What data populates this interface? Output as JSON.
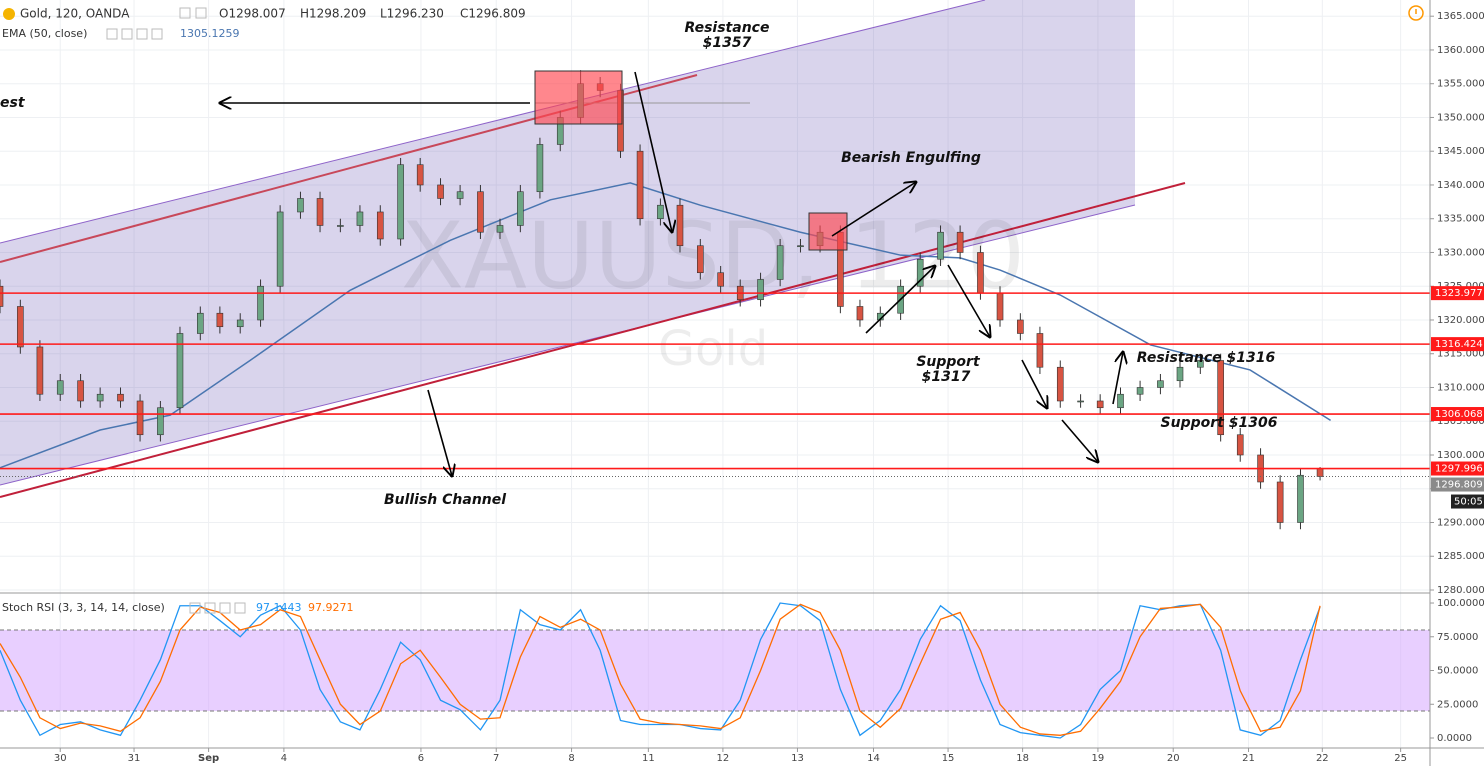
{
  "header": {
    "symbol": "Gold, 120, OANDA",
    "open": "O1298.007",
    "high": "H1298.209",
    "low": "L1296.230",
    "close": "C1296.809",
    "ema_label": "EMA (50, close)"
  },
  "annotations": {
    "resistance_1357": [
      "Resistance",
      "$1357"
    ],
    "bearish": "Bearish Engulfing",
    "channel": "Bullish Channel",
    "support_1317": [
      "Support",
      "$1317"
    ],
    "resistance_1316": "Resistance $1316",
    "support_1306": "Support $1306",
    "left_cut": "est"
  },
  "chart_data": [
    {
      "type": "candlestick",
      "watermark": "XAUUSD, 120",
      "watermark_sub": "Gold",
      "x": [
        -0.8,
        -0.53,
        -0.27,
        0,
        0.27,
        0.53,
        0.8,
        1.06,
        1.33,
        1.59,
        1.86,
        2.12,
        2.39,
        2.66,
        2.92,
        3.19,
        3.45,
        3.72,
        3.98,
        4.25,
        4.52,
        4.78,
        5.05,
        5.31,
        5.58,
        5.84,
        6.11,
        6.37,
        6.64,
        6.91,
        7.17,
        7.44,
        7.7,
        7.97,
        8.23,
        8.5,
        8.77,
        9.03,
        9.3,
        9.56,
        9.83,
        10.09,
        10.36,
        10.62,
        10.89,
        11.16,
        11.42,
        11.69,
        11.95,
        12.22,
        12.48,
        12.75,
        13.01,
        13.28,
        13.55,
        13.81,
        14.08,
        14.34,
        14.61,
        14.87,
        15.14,
        15.41,
        15.67,
        15.94,
        16.2,
        16.47,
        16.73
      ],
      "open": [
        1325,
        1322,
        1316,
        1309,
        1311,
        1308,
        1309,
        1308,
        1303,
        1307,
        1318,
        1321,
        1319,
        1320,
        1325,
        1336,
        1338,
        1334,
        1334,
        1336,
        1332,
        1343,
        1340,
        1338,
        1339,
        1333,
        1334,
        1339,
        1346,
        1350,
        1355,
        1354,
        1345,
        1335,
        1337,
        1331,
        1327,
        1325,
        1323,
        1326,
        1331,
        1331,
        1333,
        1322,
        1320,
        1321,
        1325,
        1329,
        1333,
        1330,
        1324,
        1320,
        1318,
        1313,
        1308,
        1308,
        1307,
        1309,
        1310,
        1311,
        1313,
        1314,
        1303,
        1300,
        1296,
        1290,
        1298.007
      ],
      "high": [
        1326,
        1323,
        1317,
        1312,
        1312,
        1310,
        1310,
        1309,
        1308,
        1319,
        1322,
        1322,
        1321,
        1326,
        1337,
        1339,
        1339,
        1335,
        1337,
        1337,
        1344,
        1344,
        1341,
        1340,
        1340,
        1335,
        1340,
        1347,
        1351,
        1357,
        1356,
        1355,
        1346,
        1338,
        1338,
        1332,
        1328,
        1326,
        1327,
        1332,
        1332,
        1334,
        1334,
        1323,
        1322,
        1326,
        1330,
        1334,
        1334,
        1331,
        1325,
        1321,
        1319,
        1314,
        1309,
        1309,
        1310,
        1311,
        1312,
        1314,
        1315,
        1315,
        1304,
        1301,
        1297,
        1298,
        1298.209
      ],
      "low": [
        1321,
        1315,
        1308,
        1308,
        1307,
        1307,
        1307,
        1302,
        1302,
        1306,
        1317,
        1318,
        1318,
        1319,
        1324,
        1335,
        1333,
        1333,
        1333,
        1331,
        1331,
        1339,
        1337,
        1337,
        1332,
        1332,
        1333,
        1338,
        1345,
        1349,
        1353,
        1344,
        1334,
        1334,
        1330,
        1326,
        1324,
        1322,
        1322,
        1325,
        1330,
        1330,
        1321,
        1319,
        1319,
        1320,
        1324,
        1328,
        1329,
        1323,
        1319,
        1317,
        1312,
        1307,
        1307,
        1306,
        1306,
        1308,
        1309,
        1310,
        1312,
        1302,
        1299,
        1295,
        1289,
        1289,
        1296.23
      ],
      "close": [
        1322,
        1316,
        1309,
        1311,
        1308,
        1309,
        1308,
        1303,
        1307,
        1318,
        1321,
        1319,
        1320,
        1325,
        1336,
        1338,
        1334,
        1334,
        1336,
        1332,
        1343,
        1340,
        1338,
        1339,
        1333,
        1334,
        1339,
        1346,
        1350,
        1355,
        1354,
        1345,
        1335,
        1337,
        1331,
        1327,
        1325,
        1323,
        1326,
        1331,
        1331,
        1333,
        1322,
        1320,
        1321,
        1325,
        1329,
        1333,
        1330,
        1324,
        1320,
        1318,
        1313,
        1308,
        1308,
        1307,
        1309,
        1310,
        1311,
        1313,
        1314,
        1303,
        1300,
        1296,
        1290,
        1297,
        1296.809
      ],
      "up_color": "#6ba583",
      "down_color": "#d75442",
      "ema": {
        "color": "#4a76b0",
        "x": [
          -0.8,
          0.53,
          1.46,
          2.52,
          3.85,
          5.18,
          6.51,
          7.57,
          8.5,
          9.83,
          11.16,
          11.95,
          12.48,
          13.28,
          14.48,
          15.8,
          16.87
        ],
        "values": [
          1298.1,
          1303.7,
          1305.9,
          1314,
          1324.4,
          1331.8,
          1337.8,
          1340.3,
          1337,
          1333,
          1329.6,
          1329.2,
          1327.4,
          1323.7,
          1316.3,
          1312.6,
          1305.1259
        ]
      },
      "hlines": {
        "color": "#ff1a1a",
        "values": [
          1323.977,
          1316.424,
          1306.068,
          1297.996
        ]
      },
      "last_price": 1296.809,
      "countdown": "50:05",
      "xlim": [
        -0.8,
        18.19
      ],
      "ylim": [
        1280,
        1367.4
      ],
      "yticks": [
        {
          "value": 1280,
          "label": "1280.000"
        },
        {
          "value": 1285,
          "label": "1285.000"
        },
        {
          "value": 1290,
          "label": "1290.000"
        },
        {
          "value": 1295,
          "label": "1295.000"
        },
        {
          "value": 1300,
          "label": "1300.000"
        },
        {
          "value": 1305,
          "label": "1305.000"
        },
        {
          "value": 1310,
          "label": "1310.000"
        },
        {
          "value": 1315,
          "label": "1315.000"
        },
        {
          "value": 1320,
          "label": "1320.000"
        },
        {
          "value": 1325,
          "label": "1325.000"
        },
        {
          "value": 1330,
          "label": "1330.000"
        },
        {
          "value": 1335,
          "label": "1335.000"
        },
        {
          "value": 1340,
          "label": "1340.000"
        },
        {
          "value": 1345,
          "label": "1345.000"
        },
        {
          "value": 1350,
          "label": "1350.000"
        },
        {
          "value": 1355,
          "label": "1355.000"
        },
        {
          "value": 1360,
          "label": "1360.000"
        },
        {
          "value": 1365,
          "label": "1365.000"
        }
      ],
      "xticks": [
        {
          "value": 0,
          "label": "30"
        },
        {
          "value": 0.98,
          "label": "31"
        },
        {
          "value": 1.97,
          "label": "Sep"
        },
        {
          "value": 2.97,
          "label": "4"
        },
        {
          "value": 4.79,
          "label": "6"
        },
        {
          "value": 5.79,
          "label": "7"
        },
        {
          "value": 6.79,
          "label": "8"
        },
        {
          "value": 7.81,
          "label": "11"
        },
        {
          "value": 8.8,
          "label": "12"
        },
        {
          "value": 9.79,
          "label": "13"
        },
        {
          "value": 10.8,
          "label": "14"
        },
        {
          "value": 11.79,
          "label": "15"
        },
        {
          "value": 12.78,
          "label": "18"
        },
        {
          "value": 13.78,
          "label": "19"
        },
        {
          "value": 14.78,
          "label": "20"
        },
        {
          "value": 15.78,
          "label": "21"
        },
        {
          "value": 16.76,
          "label": "22"
        },
        {
          "value": 17.8,
          "label": "25"
        }
      ],
      "grid": true
    },
    {
      "type": "line",
      "title": "Stoch RSI (3, 3, 14, 14, close)",
      "x": [
        -0.8,
        -0.53,
        -0.27,
        0,
        0.27,
        0.53,
        0.8,
        1.06,
        1.33,
        1.59,
        1.86,
        2.12,
        2.39,
        2.66,
        2.92,
        3.19,
        3.45,
        3.72,
        3.98,
        4.25,
        4.52,
        4.78,
        5.05,
        5.31,
        5.58,
        5.84,
        6.11,
        6.37,
        6.64,
        6.91,
        7.17,
        7.44,
        7.7,
        7.97,
        8.23,
        8.5,
        8.77,
        9.03,
        9.3,
        9.56,
        9.83,
        10.09,
        10.36,
        10.62,
        10.89,
        11.16,
        11.42,
        11.69,
        11.95,
        12.22,
        12.48,
        12.75,
        13.01,
        13.28,
        13.55,
        13.81,
        14.08,
        14.34,
        14.61,
        14.87,
        15.14,
        15.41,
        15.67,
        15.94,
        16.2,
        16.47,
        16.73
      ],
      "series": [
        {
          "color": "#2196f3",
          "values": [
            65,
            28,
            2,
            10,
            12,
            6,
            2,
            28,
            58,
            98,
            98,
            87,
            75,
            91,
            98,
            80,
            36,
            12,
            6,
            36,
            71,
            58,
            28,
            21,
            6,
            28,
            95,
            84,
            80,
            95,
            65,
            13,
            10,
            10,
            10,
            7,
            6,
            28,
            73,
            100,
            98,
            87,
            36,
            2,
            13,
            36,
            73,
            98,
            87,
            43,
            10,
            4,
            2,
            0,
            10,
            36,
            50,
            98,
            95,
            98,
            99,
            65,
            6,
            2,
            13,
            58,
            97.1443
          ]
        },
        {
          "color": "#ff6d00",
          "values": [
            70,
            45,
            15,
            7,
            11,
            9,
            5,
            15,
            42,
            80,
            97,
            93,
            80,
            84,
            95,
            90,
            58,
            25,
            10,
            20,
            55,
            65,
            45,
            25,
            14,
            15,
            60,
            90,
            82,
            88,
            80,
            40,
            14,
            11,
            10,
            9,
            7,
            15,
            50,
            88,
            99,
            93,
            65,
            20,
            8,
            22,
            55,
            88,
            93,
            65,
            25,
            8,
            3,
            2,
            5,
            22,
            42,
            75,
            96,
            97,
            99,
            82,
            35,
            5,
            8,
            35,
            97.9271
          ]
        }
      ],
      "band": [
        20,
        80
      ],
      "band_color": "#d6a8ff",
      "xlim": [
        -0.8,
        18.19
      ],
      "ylim": [
        -7.4,
        105.2
      ],
      "yticks": [
        {
          "value": 0,
          "label": "0.0000"
        },
        {
          "value": 25,
          "label": "25.0000"
        },
        {
          "value": 50,
          "label": "50.0000"
        },
        {
          "value": 75,
          "label": "75.0000"
        },
        {
          "value": 100,
          "label": "100.0000"
        }
      ]
    }
  ]
}
